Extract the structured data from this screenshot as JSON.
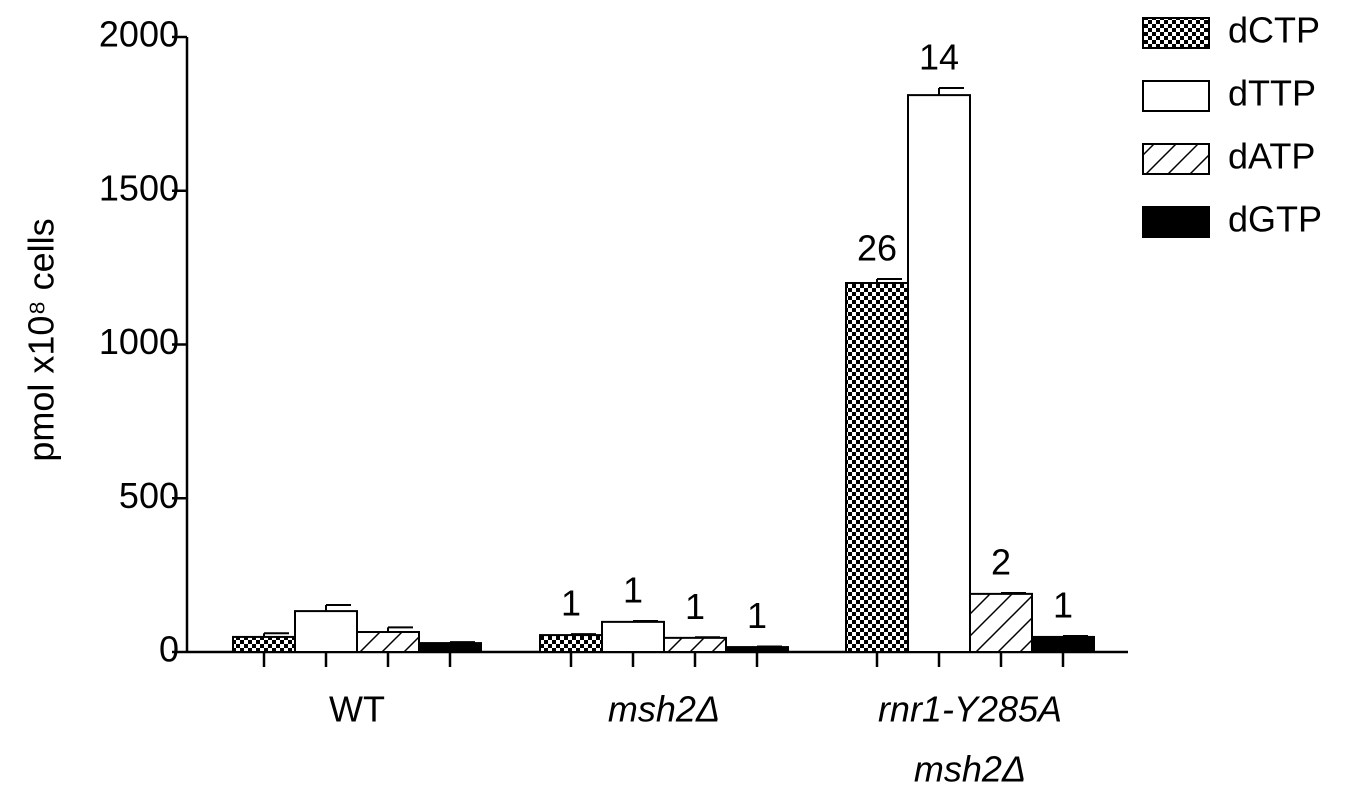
{
  "chart_data": {
    "type": "bar",
    "y_label": "pmol x10⁸ cells",
    "categories": [
      [
        "WT"
      ],
      [
        "msh2Δ"
      ],
      [
        "rnr1-Y285A",
        "msh2Δ"
      ]
    ],
    "italic_categories": [
      false,
      true,
      true
    ],
    "ylim": [
      0,
      2000
    ],
    "yticks": [
      0,
      500,
      1000,
      1500,
      2000
    ],
    "series": [
      {
        "name": "dCTP",
        "color": "#000000",
        "pattern": "checker",
        "values": [
          49,
          55,
          1200
        ],
        "errors": [
          12,
          3,
          13
        ],
        "value_labels": [
          null,
          1,
          26
        ]
      },
      {
        "name": "dTTP",
        "color": "#ffffff",
        "pattern": "solid",
        "values": [
          133,
          98,
          1811
        ],
        "errors": [
          20,
          3,
          23
        ],
        "value_labels": [
          null,
          1,
          14
        ]
      },
      {
        "name": "dATP",
        "color": "#ffffff",
        "pattern": "hatch",
        "values": [
          65,
          46,
          189
        ],
        "errors": [
          15,
          2,
          3
        ],
        "value_labels": [
          null,
          1,
          2
        ]
      },
      {
        "name": "dGTP",
        "color": "#000000",
        "pattern": "solid",
        "values": [
          29,
          16,
          49
        ],
        "errors": [
          3,
          2,
          3
        ],
        "value_labels": [
          null,
          1,
          1
        ]
      }
    ]
  }
}
